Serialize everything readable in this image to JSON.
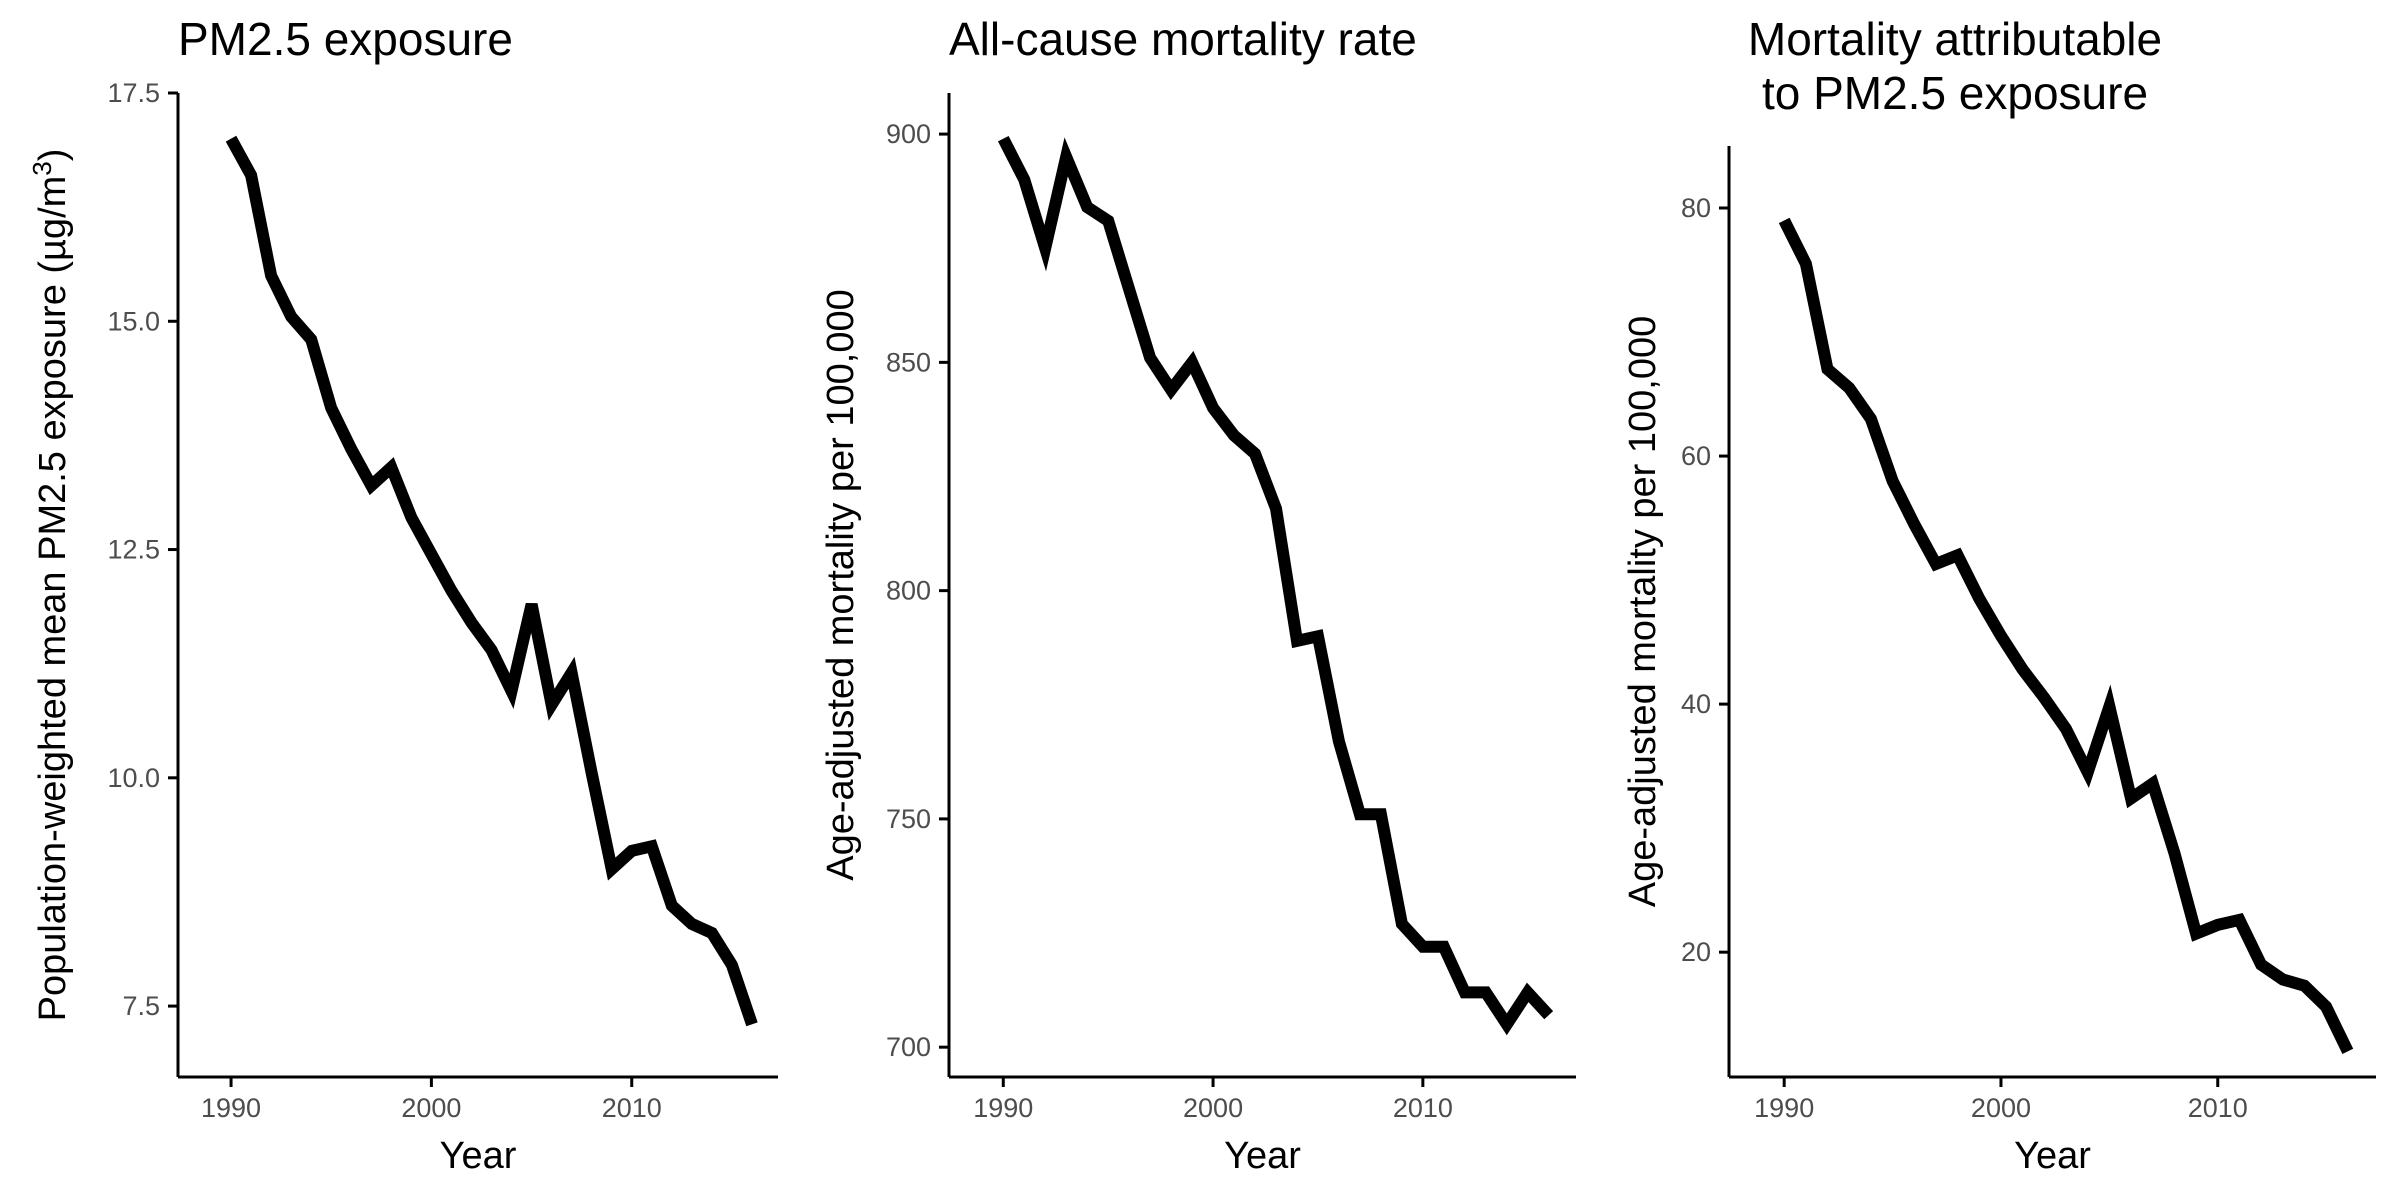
{
  "chart_data": [
    {
      "type": "line",
      "title": [
        "PM2.5 exposure"
      ],
      "xlabel": "Year",
      "ylabel": "Population-weighted mean PM2.5 exposure (µg/m³)",
      "ylabel_parts": {
        "pre": "Population-weighted mean PM2.5 exposure (µg/m",
        "sup": "3",
        "post": ")"
      },
      "xlim": [
        1988.7,
        2017.3
      ],
      "ylim": [
        6.8,
        17.5
      ],
      "xticks": [
        1990,
        2000,
        2010
      ],
      "yticks": [
        7.5,
        10.0,
        12.5,
        15.0,
        17.5
      ],
      "ytick_labels": [
        "7.5",
        "10.0",
        "12.5",
        "15.0",
        "17.5"
      ],
      "x": [
        1990,
        1991,
        1992,
        1993,
        1994,
        1995,
        1996,
        1997,
        1998,
        1999,
        2000,
        2001,
        2002,
        2003,
        2004,
        2005,
        2006,
        2007,
        2008,
        2009,
        2010,
        2011,
        2012,
        2013,
        2014,
        2015,
        2016
      ],
      "y": [
        17.0,
        16.6,
        15.5,
        15.05,
        14.8,
        14.05,
        13.6,
        13.2,
        13.4,
        12.85,
        12.45,
        12.05,
        11.7,
        11.4,
        10.95,
        11.9,
        10.8,
        11.15,
        10.05,
        9.0,
        9.2,
        9.25,
        8.6,
        8.4,
        8.3,
        7.95,
        7.3
      ],
      "legend": "none",
      "grid": false
    },
    {
      "type": "line",
      "title": [
        "All-cause mortality rate"
      ],
      "xlabel": "Year",
      "ylabel": "Age-adjusted mortality per 100,000",
      "xlim": [
        1988.7,
        2017.3
      ],
      "ylim": [
        695,
        909
      ],
      "xticks": [
        1990,
        2000,
        2010
      ],
      "yticks": [
        700,
        750,
        800,
        850,
        900
      ],
      "ytick_labels": [
        "700",
        "750",
        "800",
        "850",
        "900"
      ],
      "x": [
        1990,
        1991,
        1992,
        1993,
        1994,
        1995,
        1996,
        1997,
        1998,
        1999,
        2000,
        2001,
        2002,
        2003,
        2004,
        2005,
        2006,
        2007,
        2008,
        2009,
        2010,
        2011,
        2012,
        2013,
        2014,
        2015,
        2016
      ],
      "y": [
        899,
        890,
        875,
        895,
        884,
        881,
        866,
        851,
        844,
        850,
        840,
        834,
        830,
        818,
        789,
        790,
        767,
        751,
        751,
        727,
        722,
        722,
        712,
        712,
        705,
        712,
        707
      ],
      "legend": "none",
      "grid": false
    },
    {
      "type": "line",
      "title": [
        "Mortality attributable",
        "to PM2.5 exposure"
      ],
      "xlabel": "Year",
      "ylabel": "Age-adjusted mortality per 100,000",
      "xlim": [
        1988.7,
        2017.3
      ],
      "ylim": [
        10.5,
        85
      ],
      "xticks": [
        1990,
        2000,
        2010
      ],
      "yticks": [
        20,
        40,
        60,
        80
      ],
      "ytick_labels": [
        "20",
        "40",
        "60",
        "80"
      ],
      "x": [
        1990,
        1991,
        1992,
        1993,
        1994,
        1995,
        1996,
        1997,
        1998,
        1999,
        2000,
        2001,
        2002,
        2003,
        2004,
        2005,
        2006,
        2007,
        2008,
        2009,
        2010,
        2011,
        2012,
        2013,
        2014,
        2015,
        2016
      ],
      "y": [
        79,
        75.5,
        67,
        65.5,
        63,
        58,
        54.5,
        51.3,
        52,
        48.5,
        45.5,
        42.8,
        40.5,
        38,
        34.5,
        39.8,
        32.4,
        33.6,
        28,
        21.5,
        22.2,
        22.6,
        19,
        17.8,
        17.3,
        15.6,
        12
      ]
    }
  ]
}
